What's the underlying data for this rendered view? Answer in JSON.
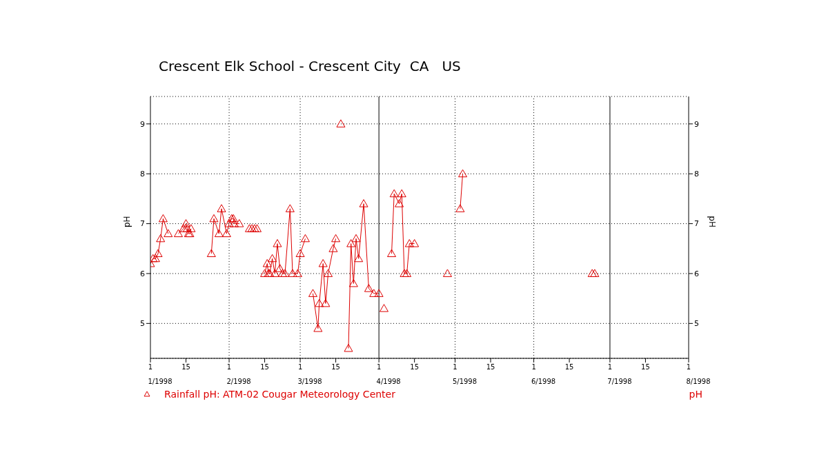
{
  "chart_data": {
    "type": "line",
    "title": "Crescent Elk School - Crescent City  CA   US",
    "ylabel": "pH",
    "y2label": "pH",
    "series": [
      {
        "name": "Rainfall pH: ATM-02 Cougar Meteorology Center",
        "color": "#dd0000",
        "x": [
          "1998-01-01",
          "1998-01-02",
          "1998-01-03",
          "1998-01-04",
          "1998-01-05",
          "1998-01-06",
          "1998-01-08",
          "1998-01-10",
          "1998-01-12",
          "1998-01-14",
          "1998-01-15",
          "1998-01-15T12:00",
          "1998-01-16",
          "1998-01-16T12:00",
          "1998-01-17",
          "1998-01-21",
          "1998-01-25",
          "1998-01-26",
          "1998-01-28",
          "1998-01-29",
          "1998-01-31",
          "1998-02-01",
          "1998-02-02",
          "1998-02-02T16:00",
          "1998-02-03",
          "1998-02-05",
          "1998-02-07",
          "1998-02-09",
          "1998-02-09T12:00",
          "1998-02-10",
          "1998-02-10T12:00",
          "1998-02-11",
          "1998-02-11T12:00",
          "1998-02-12",
          "1998-02-13",
          "1998-02-15",
          "1998-02-16",
          "1998-02-16T12:00",
          "1998-02-17",
          "1998-02-18",
          "1998-02-19",
          "1998-02-20",
          "1998-02-21",
          "1998-02-22",
          "1998-02-23",
          "1998-02-25",
          "1998-02-26",
          "1998-02-28",
          "1998-03-01",
          "1998-03-03",
          "1998-03-04",
          "1998-03-06",
          "1998-03-08",
          "1998-03-08T12:00",
          "1998-03-10",
          "1998-03-11",
          "1998-03-12",
          "1998-03-14",
          "1998-03-15",
          "1998-03-16",
          "1998-03-17",
          "1998-03-18",
          "1998-03-20",
          "1998-03-21",
          "1998-03-22",
          "1998-03-23",
          "1998-03-24",
          "1998-03-26",
          "1998-03-28",
          "1998-03-30",
          "1998-04-01",
          "1998-04-02",
          "1998-04-03",
          "1998-04-04",
          "1998-04-06",
          "1998-04-07",
          "1998-04-09",
          "1998-04-10",
          "1998-04-11",
          "1998-04-12",
          "1998-04-13",
          "1998-04-15",
          "1998-04-20",
          "1998-04-28",
          "1998-05-01",
          "1998-05-03",
          "1998-05-04",
          "1998-06-01",
          "1998-06-24",
          "1998-06-24T12:00",
          "1998-06-25"
        ],
        "values": [
          6.2,
          6.3,
          6.3,
          6.4,
          6.7,
          7.1,
          6.8,
          null,
          6.8,
          6.9,
          7.0,
          6.9,
          6.8,
          6.8,
          6.9,
          null,
          6.4,
          7.1,
          6.8,
          7.3,
          6.8,
          7.0,
          7.1,
          7.1,
          7.0,
          7.0,
          null,
          6.9,
          null,
          6.9,
          null,
          6.9,
          null,
          6.9,
          null,
          6.0,
          6.2,
          6.0,
          6.0,
          6.3,
          6.0,
          6.6,
          6.1,
          6.0,
          6.0,
          7.3,
          6.0,
          6.0,
          6.4,
          6.7,
          null,
          5.6,
          4.9,
          5.4,
          6.2,
          5.4,
          6.0,
          6.5,
          6.7,
          null,
          9.0,
          null,
          4.5,
          6.6,
          5.8,
          6.7,
          6.3,
          7.4,
          5.7,
          5.6,
          5.6,
          null,
          5.3,
          null,
          6.4,
          7.6,
          7.4,
          7.6,
          6.0,
          6.0,
          6.6,
          6.6,
          null,
          6.0,
          null,
          7.3,
          8.0,
          null,
          6.0,
          null,
          6.0
        ]
      }
    ],
    "xlim": [
      "1998-01-01",
      "1998-08-01"
    ],
    "xticks": [
      {
        "value": "1998-01-01",
        "label": "1"
      },
      {
        "value": "1998-01-15",
        "label": "15"
      },
      {
        "value": "1998-02-01",
        "label": "1"
      },
      {
        "value": "1998-02-15",
        "label": "15"
      },
      {
        "value": "1998-03-01",
        "label": "1"
      },
      {
        "value": "1998-03-15",
        "label": "15"
      },
      {
        "value": "1998-04-01",
        "label": "1"
      },
      {
        "value": "1998-04-15",
        "label": "15"
      },
      {
        "value": "1998-05-01",
        "label": "1"
      },
      {
        "value": "1998-05-15",
        "label": "15"
      },
      {
        "value": "1998-06-01",
        "label": "1"
      },
      {
        "value": "1998-06-15",
        "label": "15"
      },
      {
        "value": "1998-07-01",
        "label": "1"
      },
      {
        "value": "1998-07-15",
        "label": "15"
      },
      {
        "value": "1998-08-01",
        "label": "1"
      }
    ],
    "x2lim": [
      "1998-01-01",
      "1998-08-01"
    ],
    "x2ticks": [
      {
        "value": "1998-01-01",
        "label": "1/1998"
      },
      {
        "value": "1998-02-01",
        "label": "2/1998"
      },
      {
        "value": "1998-03-01",
        "label": "3/1998"
      },
      {
        "value": "1998-04-01",
        "label": "4/1998"
      },
      {
        "value": "1998-05-01",
        "label": "5/1998"
      },
      {
        "value": "1998-06-01",
        "label": "6/1998"
      },
      {
        "value": "1998-07-01",
        "label": "7/1998"
      },
      {
        "value": "1998-08-01",
        "label": "8/1998"
      }
    ],
    "ylim": [
      4.3,
      9.55
    ],
    "yticks": [
      5,
      6,
      7,
      8,
      9
    ],
    "y2lim": [
      4.3,
      9.55
    ],
    "y2ticks": [
      5,
      6,
      7,
      8,
      9
    ],
    "grid": "y",
    "ref_lines": [
      {
        "axis": "x",
        "value": "1998-02-01",
        "line_style": "dotted",
        "color": "#000000"
      },
      {
        "axis": "x",
        "value": "1998-03-01",
        "line_style": "dotted",
        "color": "#000000"
      },
      {
        "axis": "x",
        "value": "1998-04-01",
        "line_style": "solid",
        "color": "#000000"
      },
      {
        "axis": "x",
        "value": "1998-05-01",
        "line_style": "dotted",
        "color": "#000000"
      },
      {
        "axis": "x",
        "value": "1998-06-01",
        "line_style": "dotted",
        "color": "#000000"
      },
      {
        "axis": "x",
        "value": "1998-07-01",
        "line_style": "solid",
        "color": "#000000"
      }
    ],
    "marker": "triangle",
    "line_style": "solid",
    "legend": "bottom left",
    "annotations": [
      "pH"
    ]
  }
}
